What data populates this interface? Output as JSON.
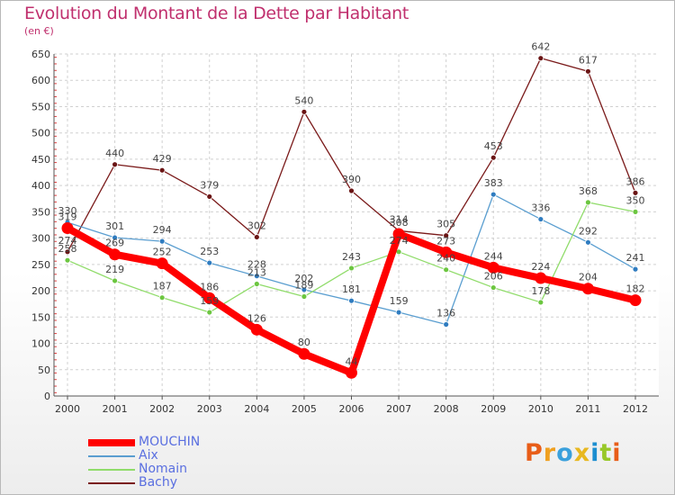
{
  "title": "Evolution du Montant de la Dette par Habitant",
  "subtitle": "(en €)",
  "logo": {
    "letters": [
      "P",
      "r",
      "o",
      "x",
      "i",
      "t",
      "i"
    ],
    "colors": [
      "#e85d18",
      "#f0a020",
      "#3aa0dc",
      "#e8b820",
      "#1c8ed0",
      "#98c828",
      "#e85d18"
    ]
  },
  "chart_data": {
    "type": "line",
    "title": "Evolution du Montant de la Dette par Habitant",
    "ylabel": "(en €)",
    "xlabel": "",
    "x": [
      "2000",
      "2001",
      "2002",
      "2003",
      "2004",
      "2005",
      "2006",
      "2007",
      "2008",
      "2009",
      "2010",
      "2011",
      "2012"
    ],
    "ylim": [
      0,
      650
    ],
    "yticks": [
      "0",
      "50",
      "100",
      "150",
      "200",
      "250",
      "300",
      "350",
      "400",
      "450",
      "500",
      "550",
      "600",
      "650"
    ],
    "grid": true,
    "legend": "bottom-left",
    "series": [
      {
        "name": "Bachy",
        "color": "#7a1a1a",
        "dot": "#6a1414",
        "values": [
          274,
          440,
          429,
          379,
          302,
          540,
          390,
          314,
          305,
          453,
          642,
          617,
          386
        ],
        "labels": [
          "274",
          "440",
          "429",
          "379",
          "302",
          "540",
          "390",
          "314",
          "305",
          "453",
          "642",
          "617",
          "386"
        ]
      },
      {
        "name": "Aix",
        "color": "#5a9ed0",
        "dot": "#2f7cc0",
        "values": [
          330,
          301,
          294,
          253,
          228,
          202,
          181,
          159,
          136,
          383,
          336,
          292,
          241
        ],
        "labels": [
          "330",
          "301",
          "294",
          "253",
          "228",
          "202",
          "181",
          "159",
          "136",
          "383",
          "336",
          "292",
          "241"
        ]
      },
      {
        "name": "Nomain",
        "color": "#90dc6a",
        "dot": "#6cc640",
        "values": [
          258,
          219,
          187,
          159,
          213,
          189,
          243,
          274,
          240,
          206,
          178,
          368,
          350
        ],
        "labels": [
          "258",
          "219",
          "187",
          "159",
          "213",
          "189",
          "243",
          "274",
          "240",
          "206",
          "178",
          "368",
          "350"
        ]
      },
      {
        "name": "MOUCHIN",
        "color": "#ff0000",
        "dot": "#ff0000",
        "values": [
          319,
          269,
          252,
          186,
          126,
          80,
          44,
          308,
          273,
          244,
          224,
          204,
          182
        ],
        "labels": [
          "319",
          "269",
          "252",
          "186",
          "126",
          "80",
          "44",
          "308",
          "273",
          "244",
          "224",
          "204",
          "182"
        ]
      }
    ],
    "legend_order": [
      "MOUCHIN",
      "Aix",
      "Nomain",
      "Bachy"
    ]
  }
}
